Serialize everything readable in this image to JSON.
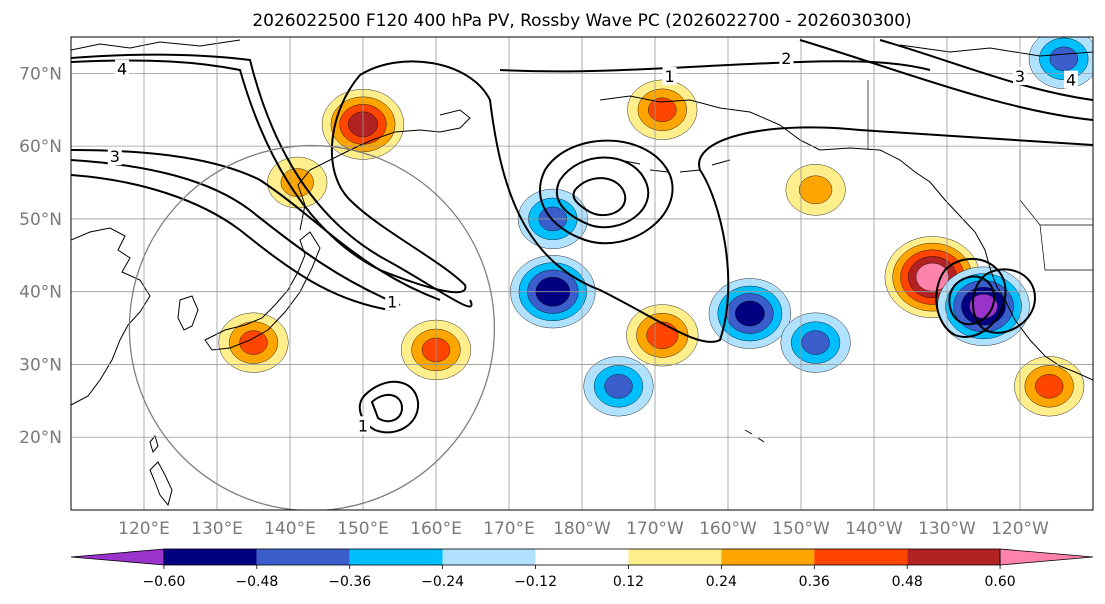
{
  "title": "2026022500 F120 400 hPa PV, Rossby Wave PC (2026022700 - 2026030300)",
  "map": {
    "projection": "PlateCarree",
    "lon_range_deg_east": [
      110,
      250
    ],
    "lat_range_deg": [
      10,
      75
    ],
    "lat_ticks": [
      {
        "lat": 70,
        "label": "70°N"
      },
      {
        "lat": 60,
        "label": "60°N"
      },
      {
        "lat": 50,
        "label": "50°N"
      },
      {
        "lat": 40,
        "label": "40°N"
      },
      {
        "lat": 30,
        "label": "30°N"
      },
      {
        "lat": 20,
        "label": "20°N"
      }
    ],
    "lon_ticks": [
      {
        "lon": 120,
        "label": "120°E"
      },
      {
        "lon": 130,
        "label": "130°E"
      },
      {
        "lon": 140,
        "label": "140°E"
      },
      {
        "lon": 150,
        "label": "150°E"
      },
      {
        "lon": 160,
        "label": "160°E"
      },
      {
        "lon": 170,
        "label": "170°E"
      },
      {
        "lon": 180,
        "label": "180°W"
      },
      {
        "lon": 190,
        "label": "170°W"
      },
      {
        "lon": 200,
        "label": "160°W"
      },
      {
        "lon": 210,
        "label": "150°W"
      },
      {
        "lon": 220,
        "label": "140°W"
      },
      {
        "lon": 230,
        "label": "130°W"
      },
      {
        "lon": 240,
        "label": "120°W"
      }
    ],
    "gridline_color": "#999999",
    "circle": {
      "center_lon": 143,
      "center_lat": 35,
      "radius_deg": 25,
      "color": "#808080"
    }
  },
  "colorbar": {
    "ticks": [
      "−0.60",
      "−0.48",
      "−0.36",
      "−0.24",
      "−0.12",
      "0.12",
      "0.24",
      "0.36",
      "0.48",
      "0.60"
    ],
    "colors": [
      "#9933cc",
      "#000080",
      "#3a5fcd",
      "#00bfff",
      "#b0e2ff",
      "#ffffff",
      "#ffee8c",
      "#ffa500",
      "#ff4500",
      "#b22222",
      "#ff82ab"
    ]
  },
  "contour_labels": [
    {
      "text": "4",
      "lon": 117,
      "lat": 70.5
    },
    {
      "text": "3",
      "lon": 116,
      "lat": 58.5
    },
    {
      "text": "1",
      "lon": 154,
      "lat": 38.5
    },
    {
      "text": "1",
      "lon": 192,
      "lat": 69.5
    },
    {
      "text": "2",
      "lon": 208,
      "lat": 72
    },
    {
      "text": "3",
      "lon": 240,
      "lat": 69.5
    },
    {
      "text": "4",
      "lon": 247,
      "lat": 69
    },
    {
      "text": "1",
      "lon": 150,
      "lat": 21.5
    }
  ],
  "pv_anomalies": [
    {
      "lon": 150,
      "lat": 63,
      "value": 0.52
    },
    {
      "lon": 141,
      "lat": 55,
      "value": 0.3
    },
    {
      "lon": 191,
      "lat": 65,
      "value": 0.4
    },
    {
      "lon": 176,
      "lat": 50,
      "value": -0.4
    },
    {
      "lon": 176,
      "lat": 40,
      "value": -0.55
    },
    {
      "lon": 191,
      "lat": 34,
      "value": 0.42
    },
    {
      "lon": 203,
      "lat": 37,
      "value": -0.52
    },
    {
      "lon": 228,
      "lat": 42,
      "value": 0.65
    },
    {
      "lon": 235,
      "lat": 38,
      "value": -0.62
    },
    {
      "lon": 135,
      "lat": 33,
      "value": 0.4
    },
    {
      "lon": 160,
      "lat": 32,
      "value": 0.4
    },
    {
      "lon": 212,
      "lat": 33,
      "value": -0.4
    },
    {
      "lon": 185,
      "lat": 27,
      "value": -0.4
    },
    {
      "lon": 212,
      "lat": 54,
      "value": 0.3
    },
    {
      "lon": 244,
      "lat": 27,
      "value": 0.4
    },
    {
      "lon": 246,
      "lat": 72,
      "value": -0.4
    }
  ]
}
